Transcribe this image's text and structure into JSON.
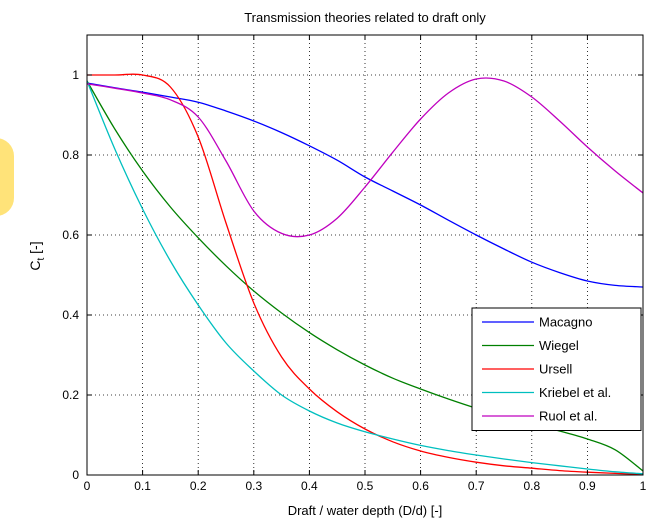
{
  "chart_data": {
    "type": "line",
    "title": "Transmission theories related to draft only",
    "xlabel": "Draft / water depth (D/d) [-]",
    "ylabel_main": "C",
    "ylabel_sub": "t",
    "ylabel_unit": " [-]",
    "xlim": [
      0,
      1
    ],
    "ylim": [
      0,
      1.1
    ],
    "grid": true,
    "legend_position": "bottom-right",
    "xticks": [
      0,
      0.1,
      0.2,
      0.3,
      0.4,
      0.5,
      0.6,
      0.7,
      0.8,
      0.9,
      1
    ],
    "xtick_labels": [
      "0",
      "0.1",
      "0.2",
      "0.3",
      "0.4",
      "0.5",
      "0.6",
      "0.7",
      "0.8",
      "0.9",
      "1"
    ],
    "yticks": [
      0,
      0.2,
      0.4,
      0.6,
      0.8,
      1
    ],
    "ytick_labels": [
      "0",
      "0.2",
      "0.4",
      "0.6",
      "0.8",
      "1"
    ],
    "x": [
      0,
      0.05,
      0.1,
      0.15,
      0.2,
      0.25,
      0.3,
      0.35,
      0.4,
      0.45,
      0.5,
      0.55,
      0.6,
      0.65,
      0.7,
      0.75,
      0.8,
      0.85,
      0.9,
      0.95,
      1
    ],
    "series": [
      {
        "name": "Macagno",
        "color": "#0000ff",
        "values": [
          0.98,
          0.968,
          0.957,
          0.945,
          0.932,
          0.91,
          0.885,
          0.856,
          0.823,
          0.787,
          0.745,
          0.71,
          0.675,
          0.637,
          0.6,
          0.565,
          0.532,
          0.506,
          0.485,
          0.474,
          0.47
        ]
      },
      {
        "name": "Wiegel",
        "color": "#008000",
        "values": [
          0.985,
          0.865,
          0.76,
          0.67,
          0.593,
          0.523,
          0.46,
          0.405,
          0.356,
          0.313,
          0.275,
          0.242,
          0.215,
          0.19,
          0.167,
          0.147,
          0.128,
          0.11,
          0.09,
          0.063,
          0.01
        ]
      },
      {
        "name": "Ursell",
        "color": "#ff0000",
        "values": [
          1.0,
          1.0,
          1.0,
          0.97,
          0.845,
          0.63,
          0.43,
          0.295,
          0.215,
          0.158,
          0.115,
          0.083,
          0.06,
          0.044,
          0.032,
          0.023,
          0.017,
          0.011,
          0.007,
          0.004,
          0.002
        ]
      },
      {
        "name": "Kriebel et al.",
        "color": "#00bfbf",
        "values": [
          0.985,
          0.815,
          0.665,
          0.535,
          0.425,
          0.33,
          0.26,
          0.2,
          0.16,
          0.13,
          0.108,
          0.09,
          0.074,
          0.061,
          0.05,
          0.04,
          0.031,
          0.023,
          0.015,
          0.008,
          0.003
        ]
      },
      {
        "name": "Ruol et al.",
        "color": "#bf00bf",
        "values": [
          0.978,
          0.967,
          0.955,
          0.938,
          0.895,
          0.785,
          0.66,
          0.604,
          0.6,
          0.642,
          0.72,
          0.807,
          0.89,
          0.955,
          0.99,
          0.985,
          0.945,
          0.885,
          0.82,
          0.76,
          0.705
        ]
      }
    ]
  }
}
